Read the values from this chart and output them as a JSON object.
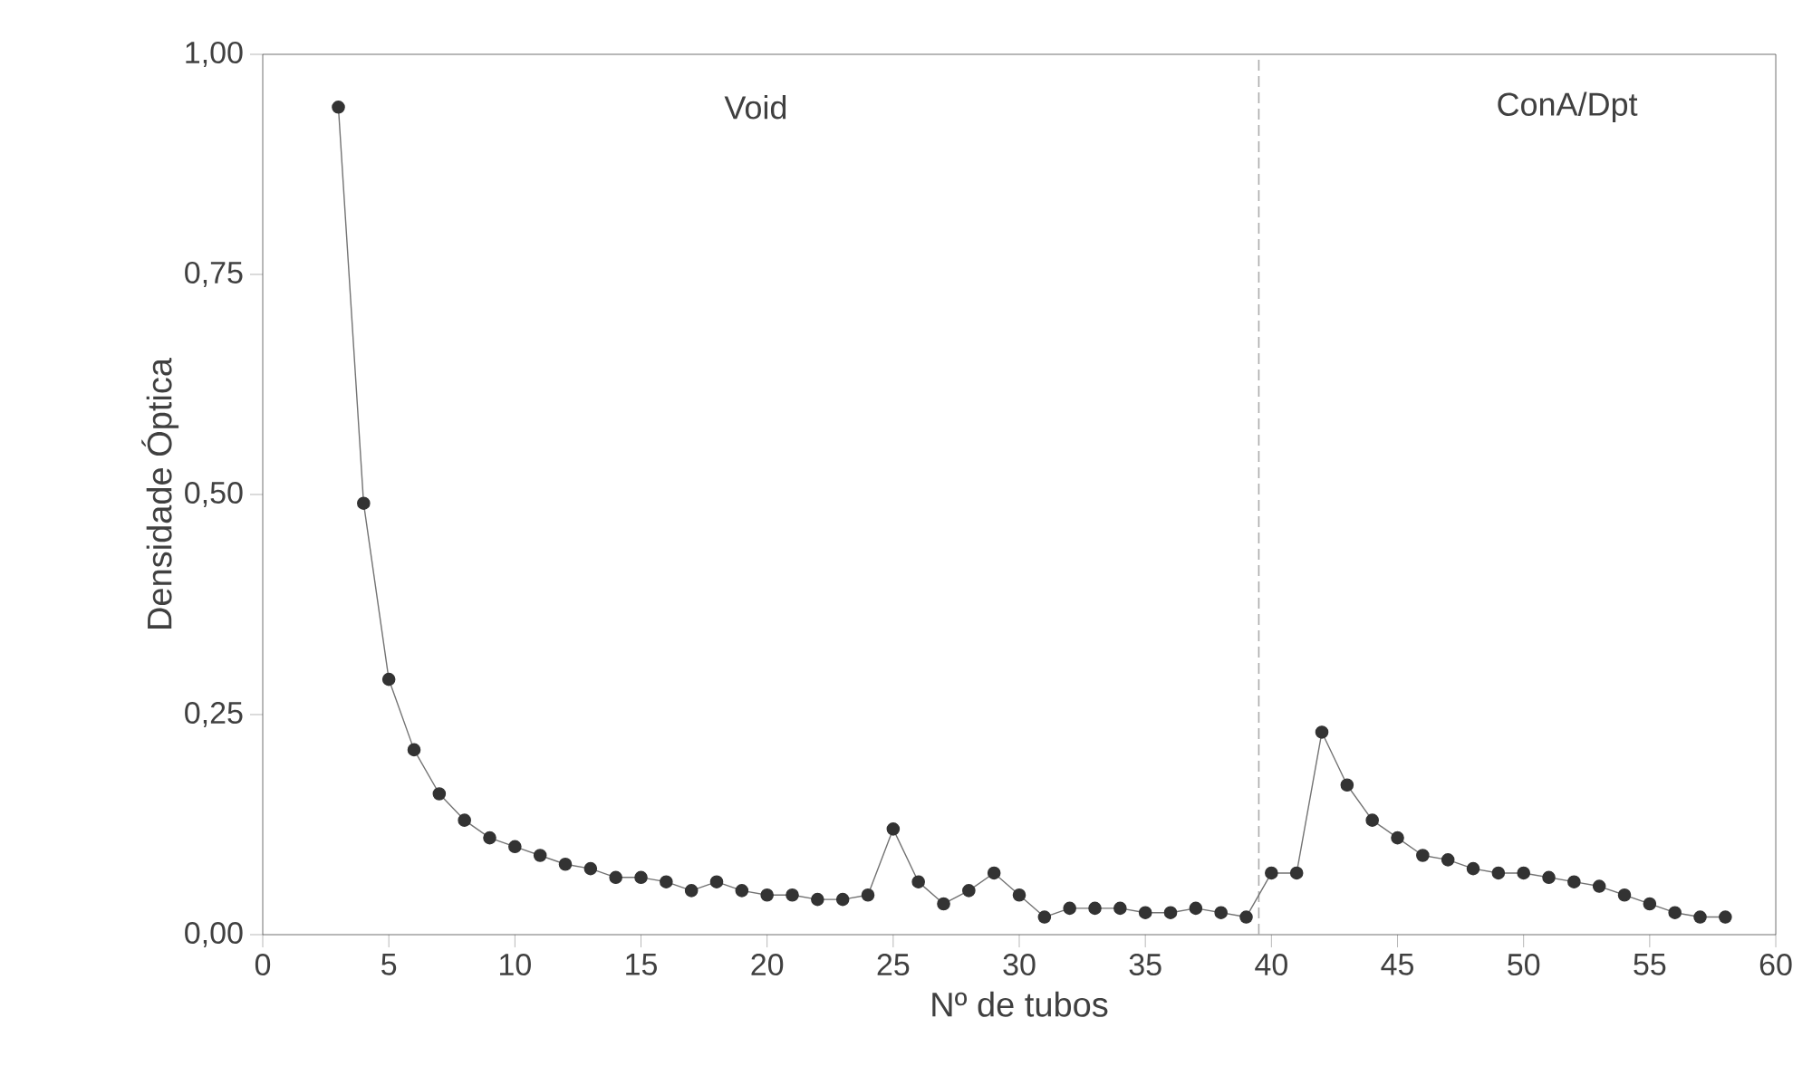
{
  "chart_data": {
    "type": "line",
    "xlabel": "Nº de tubos",
    "ylabel": "Densidade Óptica",
    "annotations": [
      "Void",
      "ConA/Dpt"
    ],
    "series": [
      {
        "color": "#333333",
        "x": [
          3,
          4,
          5,
          6,
          7,
          8,
          9,
          10,
          11,
          12,
          13,
          14,
          15,
          16,
          17,
          18,
          19,
          20,
          21,
          22,
          23,
          24,
          25,
          26,
          27,
          28,
          29,
          30,
          31,
          32,
          33,
          34,
          35,
          36,
          37,
          38,
          39,
          40,
          41,
          42,
          43,
          44,
          45,
          46,
          47,
          48,
          49,
          50,
          51,
          52,
          53,
          54,
          55,
          56,
          57,
          58
        ],
        "values": [
          0.94,
          0.49,
          0.29,
          0.21,
          0.16,
          0.13,
          0.11,
          0.1,
          0.09,
          0.08,
          0.075,
          0.065,
          0.065,
          0.06,
          0.05,
          0.06,
          0.05,
          0.045,
          0.045,
          0.04,
          0.04,
          0.045,
          0.12,
          0.06,
          0.035,
          0.05,
          0.07,
          0.045,
          0.02,
          0.03,
          0.03,
          0.03,
          0.025,
          0.025,
          0.03,
          0.025,
          0.02,
          0.07,
          0.07,
          0.23,
          0.17,
          0.13,
          0.11,
          0.09,
          0.085,
          0.075,
          0.07,
          0.07,
          0.065,
          0.06,
          0.055,
          0.045,
          0.035,
          0.025,
          0.02,
          0.02
        ]
      }
    ],
    "marker": "circle",
    "line_style": "solid",
    "grid": false,
    "xlim": [
      0,
      60
    ],
    "xticks": [
      0,
      5,
      10,
      15,
      20,
      25,
      30,
      35,
      40,
      45,
      50,
      55,
      60
    ],
    "ylim": [
      0,
      1
    ],
    "yticks": [
      {
        "value": 0,
        "label": "0,00"
      },
      {
        "value": 0.25,
        "label": "0,25"
      },
      {
        "value": 0.5,
        "label": "0,50"
      },
      {
        "value": 0.75,
        "label": "0,75"
      },
      {
        "value": 1,
        "label": "1,00"
      }
    ],
    "ref_lines": [
      {
        "axis": "x",
        "value": 39.5,
        "color": "#aaaaaa",
        "line_style": "dashed"
      }
    ]
  }
}
